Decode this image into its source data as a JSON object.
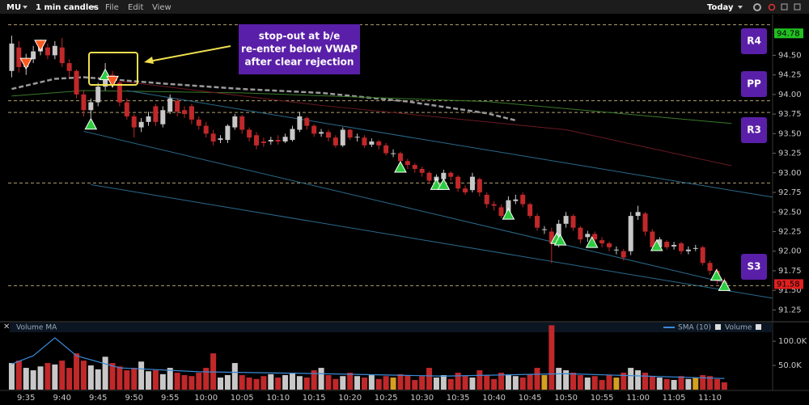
{
  "header": {
    "symbol": "MU",
    "interval": "1 min candles",
    "menu": [
      "File",
      "Edit",
      "View"
    ],
    "range": "Today"
  },
  "chart_data": [
    {
      "type": "candlestick",
      "categories": [
        null,
        null,
        "9:35",
        null,
        null,
        null,
        null,
        "9:40",
        null,
        null,
        null,
        null,
        "9:45",
        null,
        null,
        null,
        null,
        "9:50",
        null,
        null,
        null,
        null,
        "9:55",
        null,
        null,
        null,
        null,
        "10:00",
        null,
        null,
        null,
        null,
        "10:05",
        null,
        null,
        null,
        null,
        "10:10",
        null,
        null,
        null,
        null,
        "10:15",
        null,
        null,
        null,
        null,
        "10:20",
        null,
        null,
        null,
        null,
        "10:25",
        null,
        null,
        null,
        null,
        "10:30",
        null,
        null,
        null,
        null,
        "10:35",
        null,
        null,
        null,
        null,
        "10:40",
        null,
        null,
        null,
        null,
        "10:45",
        null,
        null,
        null,
        null,
        "10:50",
        null,
        null,
        null,
        null,
        "10:55",
        null,
        null,
        null,
        null,
        "11:00",
        null,
        null,
        null,
        null,
        "11:05",
        null,
        null,
        null,
        null,
        "11:10",
        null,
        null
      ],
      "open": [
        94.3,
        94.6,
        94.35,
        94.45,
        94.55,
        94.6,
        94.5,
        94.6,
        94.4,
        94.3,
        94.0,
        93.8,
        93.9,
        94.1,
        94.25,
        94.15,
        93.9,
        93.72,
        93.58,
        93.65,
        93.85,
        93.62,
        93.78,
        93.92,
        93.8,
        93.85,
        93.68,
        93.6,
        93.5,
        93.42,
        93.42,
        93.58,
        93.72,
        93.55,
        93.48,
        93.4,
        93.4,
        93.42,
        93.4,
        93.42,
        93.55,
        93.7,
        93.6,
        93.5,
        93.52,
        93.45,
        93.35,
        93.55,
        93.45,
        93.45,
        93.36,
        93.4,
        93.35,
        93.25,
        93.25,
        93.15,
        93.1,
        93.05,
        93.0,
        92.9,
        92.92,
        93.0,
        92.95,
        92.8,
        92.78,
        92.92,
        92.72,
        92.6,
        92.56,
        92.48,
        92.64,
        92.72,
        92.6,
        92.45,
        92.28,
        92.25,
        92.1,
        92.35,
        92.45,
        92.3,
        92.18,
        92.22,
        92.14,
        92.1,
        92.02,
        92.0,
        92.0,
        92.45,
        92.48,
        92.25,
        92.05,
        92.12,
        92.06,
        92.1,
        92.0,
        92.04,
        92.05,
        91.85,
        91.75,
        91.62
      ],
      "high": [
        94.75,
        94.68,
        94.52,
        94.62,
        94.7,
        94.65,
        94.68,
        94.72,
        94.45,
        94.32,
        94.05,
        93.95,
        94.15,
        94.4,
        94.3,
        94.18,
        93.95,
        93.75,
        93.7,
        93.78,
        93.88,
        93.85,
        94.0,
        93.95,
        93.85,
        93.88,
        93.72,
        93.65,
        93.55,
        93.48,
        93.62,
        93.75,
        93.74,
        93.58,
        93.52,
        93.45,
        93.46,
        93.48,
        93.5,
        93.6,
        93.78,
        93.72,
        93.62,
        93.56,
        93.55,
        93.48,
        93.58,
        93.56,
        93.5,
        93.48,
        93.44,
        93.42,
        93.38,
        93.3,
        93.27,
        93.18,
        93.12,
        93.08,
        93.02,
        92.98,
        93.04,
        93.02,
        92.97,
        92.84,
        93.0,
        92.94,
        92.75,
        92.64,
        92.6,
        92.7,
        92.72,
        92.75,
        92.62,
        92.48,
        92.32,
        92.3,
        92.4,
        92.5,
        92.47,
        92.32,
        92.26,
        92.25,
        92.18,
        92.12,
        92.06,
        92.03,
        92.5,
        92.58,
        92.5,
        92.28,
        92.18,
        92.14,
        92.12,
        92.12,
        92.06,
        92.08,
        92.07,
        91.88,
        91.78,
        91.66
      ],
      "low": [
        94.22,
        94.28,
        94.25,
        94.4,
        94.5,
        94.45,
        94.45,
        94.35,
        94.22,
        93.95,
        93.72,
        93.7,
        93.85,
        94.05,
        94.08,
        93.85,
        93.68,
        93.45,
        93.52,
        93.6,
        93.6,
        93.58,
        93.75,
        93.72,
        93.7,
        93.62,
        93.55,
        93.45,
        93.35,
        93.38,
        93.38,
        93.55,
        93.5,
        93.4,
        93.3,
        93.33,
        93.36,
        93.36,
        93.38,
        93.4,
        93.52,
        93.55,
        93.46,
        93.46,
        93.4,
        93.32,
        93.33,
        93.42,
        93.4,
        93.32,
        93.33,
        93.3,
        93.22,
        93.2,
        93.1,
        93.05,
        93.0,
        92.95,
        92.86,
        92.86,
        92.88,
        92.9,
        92.76,
        92.72,
        92.75,
        92.7,
        92.55,
        92.52,
        92.42,
        92.45,
        92.6,
        92.56,
        92.42,
        92.26,
        92.22,
        91.85,
        92.05,
        92.3,
        92.26,
        92.1,
        92.12,
        92.1,
        92.05,
        92.0,
        91.96,
        91.88,
        91.95,
        92.4,
        92.2,
        92.0,
        92.02,
        92.02,
        92.02,
        91.96,
        91.96,
        92.0,
        91.82,
        91.7,
        91.58,
        91.55
      ],
      "close": [
        94.65,
        94.35,
        94.45,
        94.55,
        94.6,
        94.5,
        94.62,
        94.4,
        94.3,
        94.0,
        93.8,
        93.9,
        94.1,
        94.25,
        94.15,
        93.9,
        93.72,
        93.58,
        93.65,
        93.72,
        93.65,
        93.8,
        93.95,
        93.78,
        93.75,
        93.68,
        93.6,
        93.5,
        93.4,
        93.44,
        93.6,
        93.72,
        93.55,
        93.45,
        93.35,
        93.38,
        93.42,
        93.4,
        93.46,
        93.56,
        93.72,
        93.6,
        93.5,
        93.52,
        93.45,
        93.35,
        93.55,
        93.45,
        93.46,
        93.35,
        93.4,
        93.35,
        93.25,
        93.25,
        93.15,
        93.1,
        93.05,
        93.0,
        92.9,
        92.95,
        93.0,
        92.95,
        92.8,
        92.75,
        92.95,
        92.75,
        92.6,
        92.58,
        92.45,
        92.65,
        92.66,
        92.6,
        92.45,
        92.3,
        92.28,
        92.1,
        92.35,
        92.45,
        92.3,
        92.15,
        92.22,
        92.15,
        92.1,
        92.05,
        92.02,
        91.92,
        92.45,
        92.5,
        92.25,
        92.05,
        92.15,
        92.05,
        92.08,
        92.0,
        92.02,
        92.04,
        91.85,
        91.75,
        91.62,
        91.58
      ],
      "up_color": "#c8c8c8",
      "down_color": "#c0282a",
      "flat_color": "#d4a020",
      "xlim": [
        -0.5,
        105.7
      ],
      "ylim": [
        91.11,
        95.02
      ],
      "yticks": [
        {
          "value": 94.5,
          "label": "94.50"
        },
        94.25,
        {
          "value": 94,
          "label": "94.00"
        },
        93.75,
        {
          "value": 93.5,
          "label": "93.50"
        },
        93.25,
        {
          "value": 93,
          "label": "93.00"
        },
        92.75,
        {
          "value": 92.5,
          "label": "92.50"
        },
        92.25,
        {
          "value": 92,
          "label": "92.00"
        },
        91.75,
        {
          "value": 91.5,
          "label": "91.50"
        },
        91.25
      ],
      "reference_lines": {
        "values": [
          94.89,
          93.92,
          93.77,
          92.87,
          91.56
        ],
        "color": "#b0a070"
      },
      "level_labels": {
        "labels": [
          "R4",
          "PP",
          "R3",
          "S3"
        ],
        "color": "#5a1fa8"
      },
      "price_tags": [
        {
          "value": 94.78,
          "color": "#22c022"
        },
        {
          "value": 91.58,
          "color": "#e02020"
        }
      ],
      "overlays": [
        {
          "color": "#9a9a9a",
          "dash": true,
          "width": 2.5,
          "x": [
            0,
            6,
            10,
            21,
            32,
            43,
            55,
            66,
            70
          ],
          "values": [
            94.07,
            94.2,
            94.22,
            94.14,
            94.07,
            94.02,
            93.91,
            93.76,
            93.67
          ]
        },
        {
          "color": "#3a7a2a",
          "dash": false,
          "width": 1,
          "x": [
            0,
            10,
            32,
            66,
            100
          ],
          "values": [
            93.98,
            94.05,
            94.02,
            93.91,
            93.63
          ]
        },
        {
          "color": "#6a1a22",
          "dash": false,
          "width": 1,
          "x": [
            15,
            43,
            77,
            100
          ],
          "values": [
            94.17,
            93.86,
            93.55,
            93.09
          ]
        },
        {
          "color": "#2a6a8a",
          "dash": false,
          "width": 1,
          "x": [
            16,
            105.7
          ],
          "values": [
            94.05,
            92.69
          ]
        },
        {
          "color": "#2a6a8a",
          "dash": false,
          "width": 1,
          "x": [
            10,
            99.5
          ],
          "values": [
            93.53,
            91.59
          ]
        },
        {
          "color": "#2a6a8a",
          "dash": false,
          "width": 1,
          "x": [
            11,
            105.7
          ],
          "values": [
            92.85,
            91.4
          ]
        }
      ],
      "signals": [
        {
          "direction": "up",
          "color": "#2ecc40",
          "x": [
            11,
            13,
            54,
            59,
            60,
            69,
            75.7,
            76.2,
            80.6,
            89.6,
            97.9,
            99
          ],
          "values": [
            93.62,
            94.25,
            93.07,
            92.85,
            92.85,
            92.47,
            92.16,
            92.14,
            92.11,
            92.07,
            91.69,
            91.56
          ]
        },
        {
          "direction": "down",
          "color": "#ff5a1e",
          "x": [
            2,
            4,
            14
          ],
          "values": [
            94.4,
            94.63,
            94.17
          ]
        }
      ],
      "annotation": [
        "stop-out at b/e",
        "re-enter below VWAP",
        "after clear rejection"
      ]
    },
    {
      "type": "bar",
      "title": "Volume MA",
      "legend": [
        "SMA (10)",
        "Volume"
      ],
      "values": [
        55000,
        60000,
        45000,
        40000,
        48000,
        55000,
        52000,
        60000,
        45000,
        75000,
        60000,
        50000,
        42000,
        68000,
        55000,
        48000,
        40000,
        45000,
        58000,
        38000,
        40000,
        32000,
        45000,
        35000,
        30000,
        28000,
        35000,
        45000,
        75000,
        25000,
        30000,
        55000,
        30000,
        25000,
        22000,
        28000,
        32000,
        25000,
        30000,
        35000,
        28000,
        25000,
        40000,
        45000,
        30000,
        22000,
        28000,
        35000,
        28000,
        25000,
        30000,
        22000,
        28000,
        25000,
        32000,
        30000,
        20000,
        28000,
        45000,
        25000,
        30000,
        22000,
        35000,
        28000,
        25000,
        40000,
        30000,
        22000,
        35000,
        30000,
        28000,
        25000,
        32000,
        45000,
        30000,
        133000,
        45000,
        40000,
        35000,
        30000,
        25000,
        28000,
        20000,
        30000,
        25000,
        35000,
        45000,
        40000,
        35000,
        28000,
        25000,
        22000,
        20000,
        28000,
        22000,
        25000,
        30000,
        28000,
        22000,
        15000
      ],
      "ylim": [
        0,
        137000
      ],
      "yticks": [
        {
          "value": 100000,
          "label": "100.0K"
        },
        {
          "value": 50000,
          "label": "50.0K"
        }
      ],
      "ma": {
        "color": "#3a8ad8",
        "x": [
          0,
          3,
          6,
          9,
          15,
          26,
          43,
          60,
          77,
          88,
          99
        ],
        "values": [
          53000,
          70000,
          107000,
          70000,
          45000,
          37000,
          33000,
          28000,
          33000,
          28000,
          23000
        ]
      }
    }
  ]
}
